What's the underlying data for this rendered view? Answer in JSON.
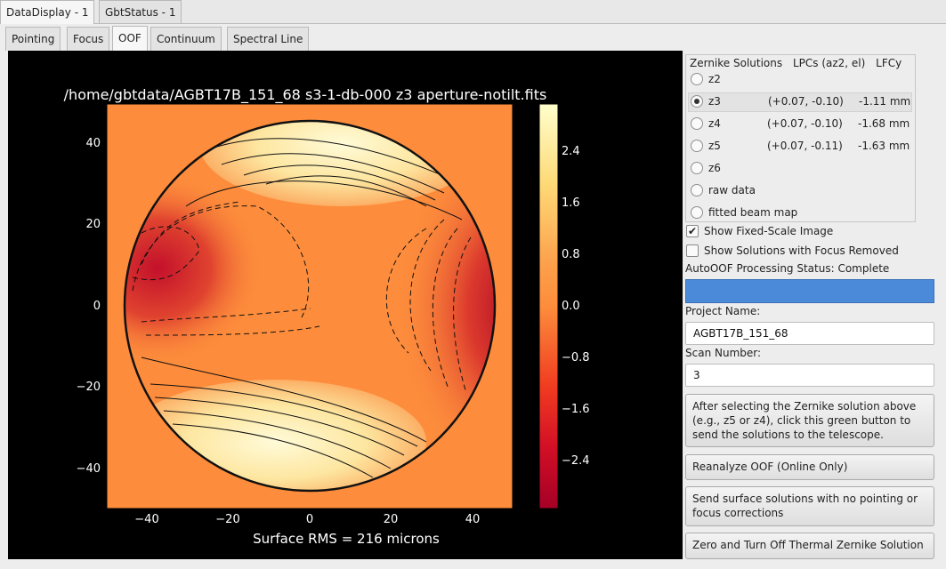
{
  "top_tabs": [
    {
      "label": "DataDisplay - 1",
      "active": true
    },
    {
      "label": "GbtStatus - 1",
      "active": false
    }
  ],
  "sub_tabs": [
    {
      "label": "Pointing"
    },
    {
      "label": "Focus"
    },
    {
      "label": "OOF"
    },
    {
      "label": "Continuum"
    },
    {
      "label": "Spectral Line"
    }
  ],
  "plot": {
    "title": "/home/gbtdata/AGBT17B_151_68 s3-1-db-000 z3 aperture-notilt.fits",
    "footer": "Surface RMS = 216 microns",
    "x_ticks": [
      "−40",
      "−20",
      "0",
      "20",
      "40"
    ],
    "y_ticks": [
      "40",
      "20",
      "0",
      "−20",
      "−40"
    ],
    "colorbar_ticks": [
      "2.4",
      "1.6",
      "0.8",
      "0.0",
      "−0.8",
      "−1.6",
      "−2.4"
    ],
    "colors": {
      "high": "#fff5c0",
      "mid": "#fd8d3c",
      "low": "#a50026"
    }
  },
  "zernike": {
    "headers": [
      "Zernike Solutions",
      "LPCs (az2, el)",
      "LFCy"
    ],
    "rows": [
      {
        "name": "z2",
        "lpc": "",
        "lfc": "",
        "selected": false
      },
      {
        "name": "z3",
        "lpc": "(+0.07, -0.10)",
        "lfc": "-1.11 mm",
        "selected": true
      },
      {
        "name": "z4",
        "lpc": "(+0.07, -0.10)",
        "lfc": "-1.68 mm",
        "selected": false
      },
      {
        "name": "z5",
        "lpc": "(+0.07, -0.11)",
        "lfc": "-1.63 mm",
        "selected": false
      },
      {
        "name": "z6",
        "lpc": "",
        "lfc": "",
        "selected": false
      },
      {
        "name": "raw data",
        "lpc": "",
        "lfc": "",
        "selected": false
      },
      {
        "name": "fitted beam map",
        "lpc": "",
        "lfc": "",
        "selected": false
      }
    ]
  },
  "options": {
    "fixed_scale_label": "Show Fixed-Scale Image",
    "fixed_scale_checked": true,
    "focus_removed_label": "Show Solutions with Focus Removed",
    "focus_removed_checked": false
  },
  "status": {
    "label": "AutoOOF Processing Status: Complete",
    "bar_color": "#4a8ad9"
  },
  "project": {
    "label": "Project Name:",
    "value": "AGBT17B_151_68"
  },
  "scan": {
    "label": "Scan Number:",
    "value": "3"
  },
  "buttons": {
    "send_green": "After selecting the Zernike solution above (e.g., z5 or z4), click this green button to send the solutions to the telescope.",
    "reanalyze": "Reanalyze OOF (Online Only)",
    "send_surface": "Send surface solutions with no pointing or focus corrections",
    "zero_thermal": "Zero and Turn Off Thermal Zernike Solution"
  }
}
